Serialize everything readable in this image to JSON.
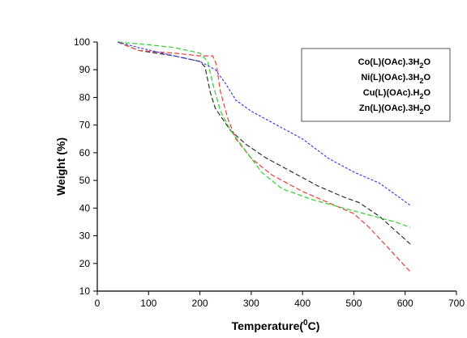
{
  "chart_data": {
    "type": "line",
    "title": "",
    "xlabel": "Temperature(",
    "xlabel_sup": "0",
    "xlabel_tail": "C)",
    "ylabel": "Weight (%)",
    "xlim": [
      0,
      700
    ],
    "ylim": [
      10,
      100
    ],
    "xticks": [
      "0",
      "100",
      "200",
      "300",
      "400",
      "500",
      "600",
      "700"
    ],
    "yticks": [
      "10",
      "20",
      "30",
      "40",
      "50",
      "60",
      "70",
      "80",
      "90",
      "100"
    ],
    "grid": false,
    "legend_position": "top-right",
    "series": [
      {
        "name": "Co(L)(OAc).3H",
        "name_sub": "2",
        "name_tail": "O",
        "color": "#2f2f2f",
        "dash": "6,3",
        "x": [
          40,
          80,
          150,
          200,
          210,
          220,
          230,
          245,
          260,
          290,
          330,
          380,
          430,
          480,
          510,
          550,
          580,
          610
        ],
        "y": [
          100,
          97,
          95,
          93,
          91,
          82,
          76,
          72,
          68,
          63,
          58,
          53,
          48,
          44,
          42,
          37,
          32,
          27
        ]
      },
      {
        "name": "Ni(L)(OAc).3H",
        "name_sub": "2",
        "name_tail": "O",
        "color": "#e8403a",
        "dash": "6,3",
        "x": [
          40,
          80,
          150,
          200,
          225,
          232,
          240,
          255,
          270,
          300,
          340,
          400,
          450,
          500,
          530,
          560,
          590,
          610
        ],
        "y": [
          100,
          97,
          96,
          95,
          95,
          92,
          82,
          72,
          65,
          58,
          52,
          46,
          42,
          38,
          33,
          27,
          21,
          17
        ]
      },
      {
        "name": "Cu(L)(OAc).H",
        "name_sub": "2",
        "name_tail": "O",
        "color": "#2fd02f",
        "dash": "6,3",
        "x": [
          40,
          100,
          150,
          200,
          215,
          225,
          240,
          260,
          280,
          300,
          320,
          360,
          420,
          480,
          540,
          580,
          610
        ],
        "y": [
          100,
          99,
          98,
          96,
          93,
          85,
          75,
          68,
          63,
          58,
          53,
          47,
          43,
          40,
          37,
          35,
          33
        ]
      },
      {
        "name": "Zn(L)(OAc).3H",
        "name_sub": "2",
        "name_tail": "O",
        "color": "#3d3df0",
        "dash": "3,2",
        "x": [
          40,
          80,
          150,
          200,
          230,
          250,
          270,
          300,
          350,
          400,
          450,
          500,
          550,
          580,
          610
        ],
        "y": [
          100,
          98,
          95,
          93,
          90,
          85,
          79,
          75,
          70,
          65,
          58,
          53,
          49,
          45,
          41
        ]
      }
    ]
  }
}
